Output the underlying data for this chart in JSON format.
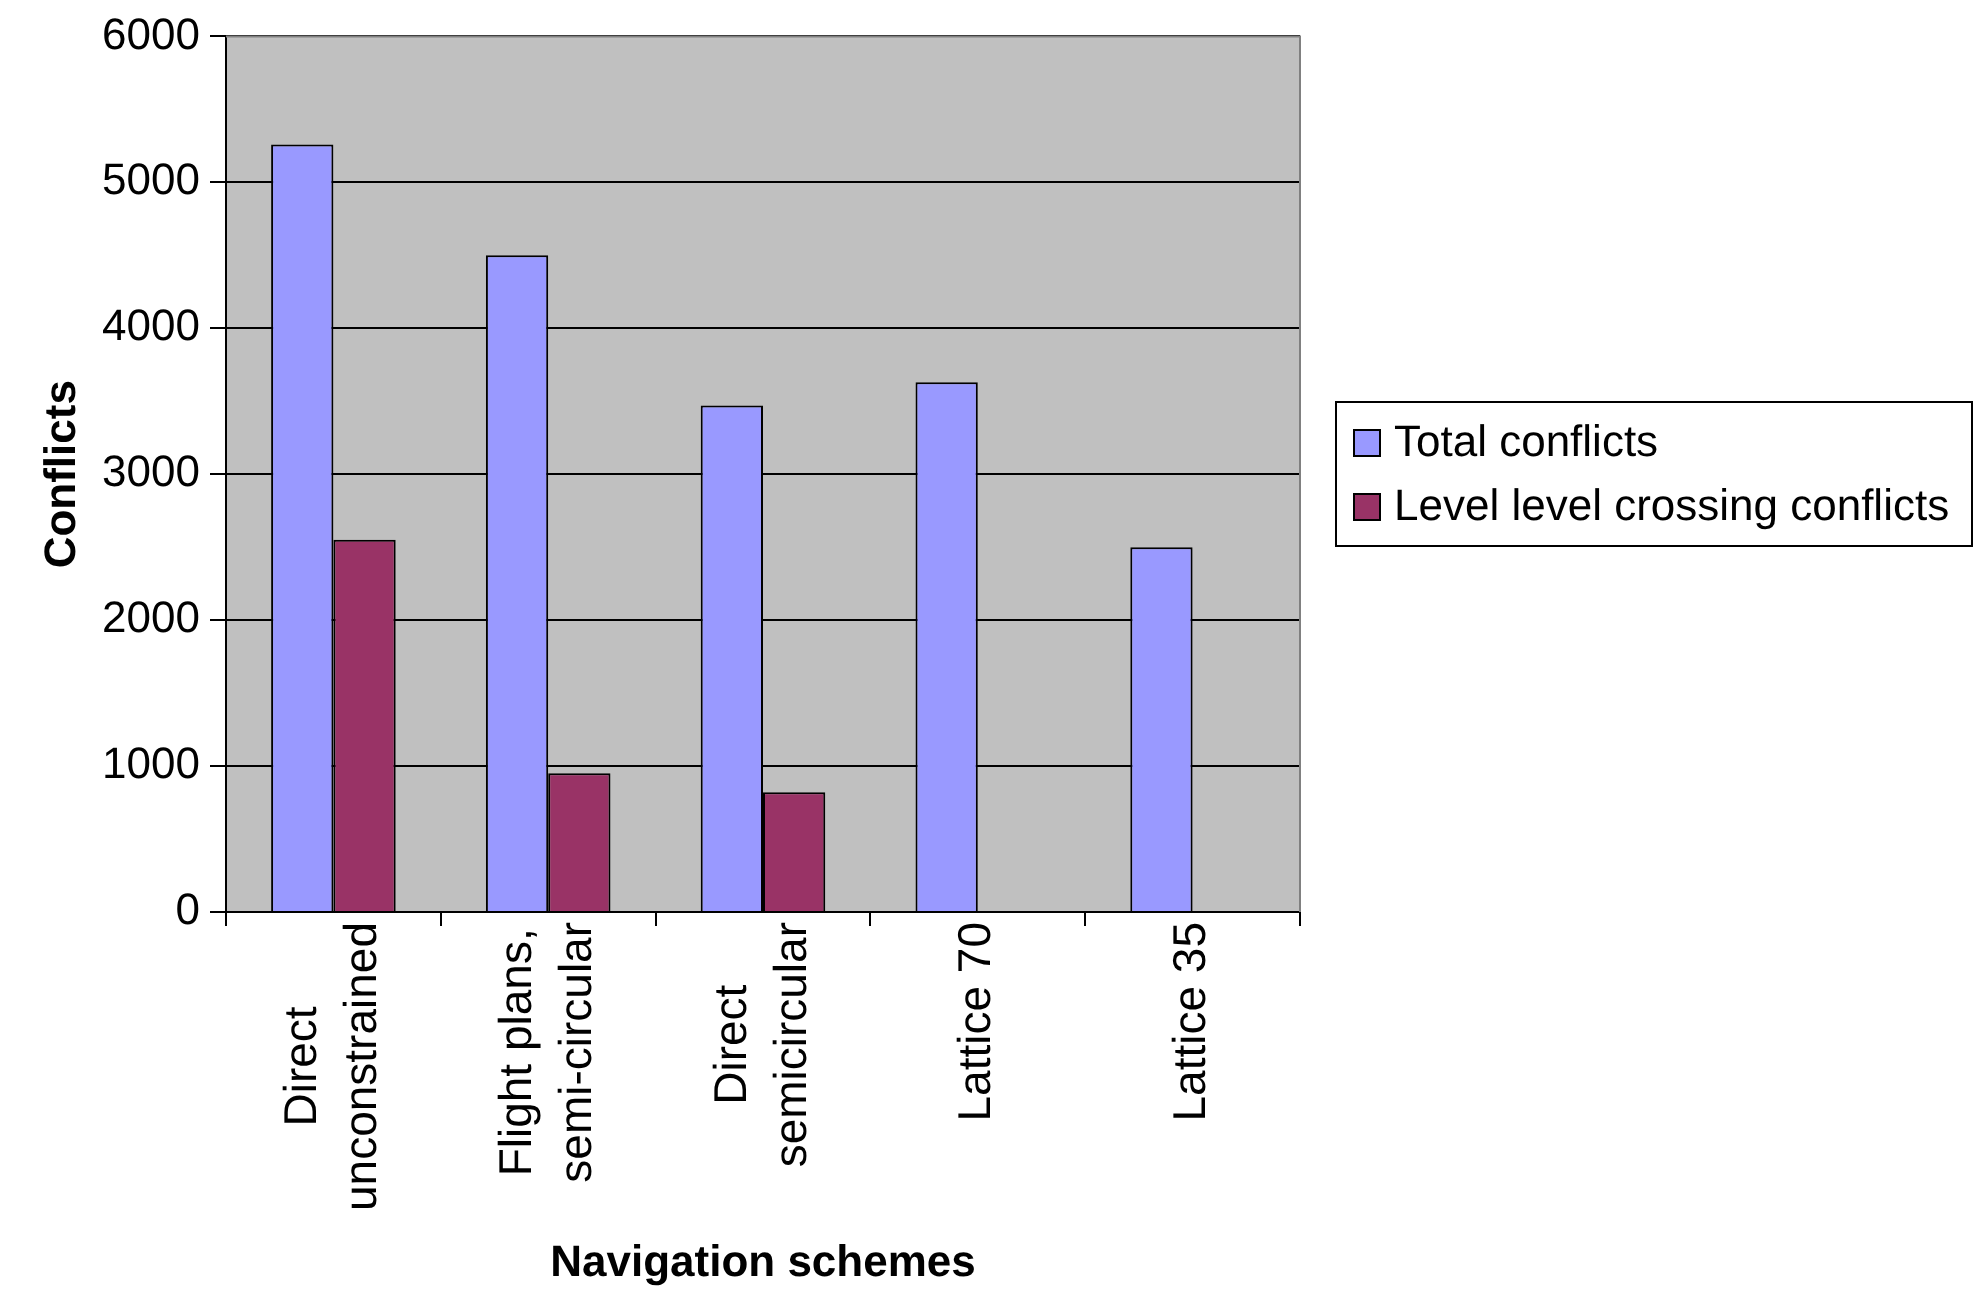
{
  "chart_data": {
    "type": "bar",
    "categories": [
      "Direct unconstrained",
      "Flight plans, semi-circular",
      "Direct semicircular",
      "Lattice 70",
      "Lattice 35"
    ],
    "series": [
      {
        "name": "Total conflicts",
        "color": "#9999ff",
        "values": [
          5260,
          4500,
          3470,
          3630,
          2500
        ]
      },
      {
        "name": "Level level crossing conflicts",
        "color": "#993366",
        "values": [
          2550,
          950,
          820,
          null,
          null
        ]
      }
    ],
    "xlabel": "Navigation schemes",
    "ylabel": "Conflicts",
    "ylim": [
      0,
      6000
    ],
    "yticks": [
      0,
      1000,
      2000,
      3000,
      4000,
      5000,
      6000
    ],
    "grid": "y",
    "legend": "right"
  }
}
